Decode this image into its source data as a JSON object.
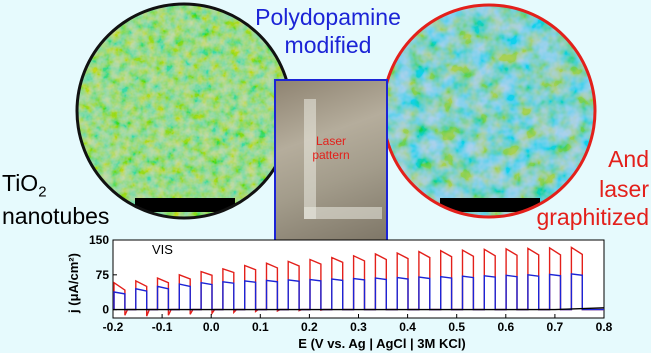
{
  "figure": {
    "center_title_line1": "Polydopamine",
    "center_title_line2": "modified",
    "left_label_prefix": "TiO",
    "left_label_sub": "2",
    "left_label_line2": "nanotubes",
    "right_label_line1": "And",
    "right_label_line2": "laser",
    "right_label_line3": "graphitized",
    "photo_label_line1": "Laser",
    "photo_label_line2": "pattern"
  },
  "colors": {
    "background": "#e6fafd",
    "blue": "#1c24d6",
    "red": "#e3201b",
    "black": "#000000"
  },
  "chart_data": {
    "type": "line",
    "annotation": "VIS",
    "xlabel": "E (V vs. Ag | AgCl | 3M KCl)",
    "ylabel": "j (μA/cm²)",
    "xlim": [
      -0.2,
      0.8
    ],
    "ylim": [
      -18,
      150
    ],
    "x_ticks": [
      "-0.2",
      "-0.1",
      "0.0",
      "0.1",
      "0.2",
      "0.3",
      "0.4",
      "0.5",
      "0.6",
      "0.7",
      "0.8"
    ],
    "y_ticks": [
      "150",
      "75",
      "0"
    ],
    "chopped_light": {
      "pulse_count": 22,
      "x_start": -0.198,
      "x_end": 0.778
    },
    "series": [
      {
        "color": "#e3201b",
        "on_start": [
          58,
          62,
          68,
          75,
          82,
          88,
          95,
          100,
          104,
          108,
          112,
          116,
          120,
          122,
          125,
          127,
          128,
          130,
          131,
          132,
          133,
          134
        ],
        "on_end": [
          42,
          50,
          58,
          66,
          74,
          80,
          86,
          90,
          94,
          98,
          102,
          105,
          108,
          110,
          112,
          114,
          115,
          116,
          117,
          118,
          118,
          119
        ],
        "dark_dip": [
          -12,
          -14,
          -12,
          -10,
          -8,
          -6,
          -4,
          -3,
          -2,
          -1,
          0,
          0,
          0,
          0,
          0,
          0,
          0,
          0,
          0,
          0,
          0,
          0
        ]
      },
      {
        "color": "#1c24d6",
        "on_start": [
          38,
          45,
          50,
          55,
          58,
          60,
          62,
          63,
          64,
          65,
          66,
          67,
          68,
          69,
          70,
          71,
          72,
          73,
          74,
          75,
          76,
          77
        ],
        "on_end": [
          34,
          40,
          45,
          50,
          54,
          57,
          59,
          60,
          61,
          62,
          63,
          64,
          65,
          66,
          67,
          68,
          69,
          70,
          71,
          72,
          73,
          74
        ],
        "dark_dip": [
          0,
          0,
          0,
          0,
          0,
          0,
          0,
          0,
          0,
          0,
          0,
          0,
          0,
          0,
          0,
          0,
          0,
          0,
          0,
          0,
          0,
          0
        ]
      },
      {
        "color": "#000000",
        "x": [
          -0.2,
          0.0,
          0.2,
          0.4,
          0.6,
          0.7,
          0.75,
          0.8
        ],
        "y": [
          0,
          0,
          0,
          0,
          0,
          0,
          2,
          4
        ]
      }
    ]
  }
}
